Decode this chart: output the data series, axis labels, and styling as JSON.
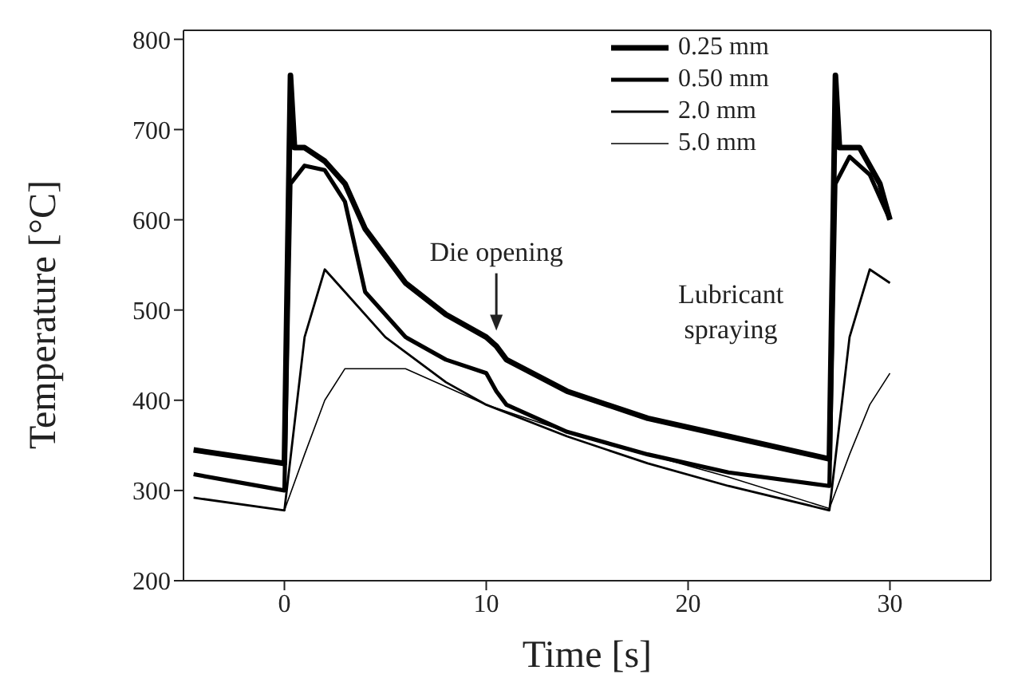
{
  "chart_data": {
    "type": "line",
    "xlabel": "Time [s]",
    "ylabel": "Temperature [°C]",
    "xlim": [
      -5,
      35
    ],
    "xticks": [
      0,
      10,
      20,
      30
    ],
    "ylim": [
      200,
      810
    ],
    "yticks": [
      200,
      300,
      400,
      500,
      600,
      700,
      800
    ],
    "legend": "top right",
    "marker": "none",
    "line_style": "solid",
    "annotations": [
      {
        "text": "Die opening",
        "x": 10.5,
        "y": 470
      },
      "Lubricant spraying"
    ],
    "series": [
      {
        "name": "0.25 mm",
        "color": "#000000",
        "x": [
          -4.5,
          0,
          0.3,
          0.5,
          1,
          2,
          3,
          4,
          6,
          8,
          10,
          10.5,
          11,
          14,
          18,
          22,
          27,
          27.3,
          27.5,
          28.5,
          29.5,
          30
        ],
        "values": [
          345,
          330,
          760,
          680,
          680,
          665,
          640,
          590,
          530,
          495,
          470,
          460,
          445,
          410,
          380,
          360,
          335,
          760,
          680,
          680,
          640,
          600
        ]
      },
      {
        "name": "0.50 mm",
        "color": "#000000",
        "x": [
          -4.5,
          0,
          0.3,
          1,
          2,
          3,
          4,
          6,
          8,
          10,
          10.5,
          11,
          14,
          18,
          22,
          27,
          27.3,
          28,
          29,
          30
        ],
        "values": [
          318,
          300,
          640,
          660,
          655,
          620,
          520,
          470,
          445,
          430,
          410,
          395,
          365,
          340,
          320,
          305,
          640,
          670,
          650,
          600
        ]
      },
      {
        "name": "2.0 mm",
        "color": "#000000",
        "x": [
          -4.5,
          0,
          1,
          2,
          3,
          5,
          8,
          10,
          14,
          18,
          22,
          27,
          28,
          29,
          30
        ],
        "values": [
          292,
          278,
          470,
          545,
          520,
          470,
          420,
          395,
          360,
          330,
          305,
          278,
          470,
          545,
          530
        ]
      },
      {
        "name": "5.0 mm",
        "color": "#000000",
        "x": [
          0,
          1,
          2,
          3,
          6,
          8,
          10,
          14,
          18,
          22,
          27,
          28,
          29,
          30
        ],
        "values": [
          278,
          340,
          400,
          435,
          435,
          415,
          395,
          365,
          340,
          315,
          280,
          340,
          395,
          430
        ]
      }
    ]
  }
}
